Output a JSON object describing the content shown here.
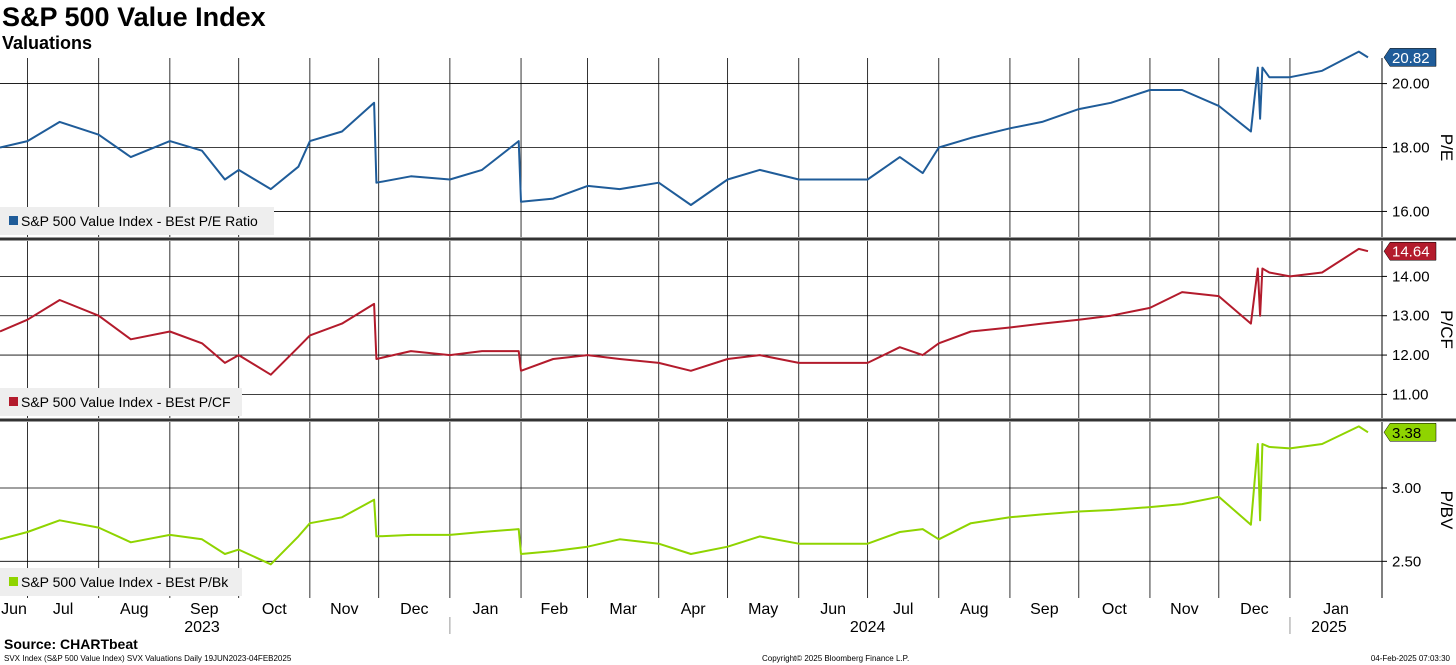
{
  "title": "S&P 500 Value Index",
  "subtitle": "Valuations",
  "footer": {
    "source": "Source: CHARTbeat",
    "left": "SVX Index (S&P 500 Value Index) SVX Valuations Daily 19JUN2023-04FEB2025",
    "middle": "Copyright© 2025 Bloomberg Finance L.P.",
    "right": "04-Feb-2025 07:03:30"
  },
  "colors": {
    "pe": "#1f5c99",
    "pcf": "#b31b2c",
    "pbv": "#8fd400",
    "grid": "#000000",
    "separator": "#333333",
    "legend_bg": "#eeeeee"
  },
  "chart_data": [
    {
      "type": "line",
      "ylabel": "P/E",
      "ylim": [
        15.2,
        20.8
      ],
      "yticks": [
        "16.00",
        "18.00",
        "20.00"
      ],
      "last_value_label": "20.82",
      "legend_position": "bottom-left",
      "series": [
        {
          "name": "S&P 500 Value Index - BEst P/E Ratio",
          "x": [
            "2023-06-19",
            "2023-07-01",
            "2023-07-15",
            "2023-08-01",
            "2023-08-15",
            "2023-09-01",
            "2023-09-15",
            "2023-09-25",
            "2023-10-01",
            "2023-10-15",
            "2023-10-27",
            "2023-11-01",
            "2023-11-15",
            "2023-11-29",
            "2023-11-30",
            "2023-12-15",
            "2024-01-01",
            "2024-01-15",
            "2024-01-31",
            "2024-02-01",
            "2024-02-15",
            "2024-03-01",
            "2024-03-15",
            "2024-04-01",
            "2024-04-15",
            "2024-05-01",
            "2024-05-15",
            "2024-06-01",
            "2024-06-15",
            "2024-07-01",
            "2024-07-15",
            "2024-07-25",
            "2024-08-01",
            "2024-08-15",
            "2024-09-01",
            "2024-09-15",
            "2024-10-01",
            "2024-10-15",
            "2024-11-01",
            "2024-11-15",
            "2024-12-01",
            "2024-12-15",
            "2024-12-18",
            "2024-12-19",
            "2024-12-20",
            "2024-12-23",
            "2025-01-01",
            "2025-01-15",
            "2025-01-31",
            "2025-02-04"
          ],
          "values": [
            18.0,
            18.2,
            18.8,
            18.4,
            17.7,
            18.2,
            17.9,
            17.0,
            17.3,
            16.7,
            17.4,
            18.2,
            18.5,
            19.4,
            16.9,
            17.1,
            17.0,
            17.3,
            18.2,
            16.3,
            16.4,
            16.8,
            16.7,
            16.9,
            16.2,
            17.0,
            17.3,
            17.0,
            17.0,
            17.0,
            17.7,
            17.2,
            18.0,
            18.3,
            18.6,
            18.8,
            19.2,
            19.4,
            19.8,
            19.8,
            19.3,
            18.5,
            20.5,
            18.9,
            20.5,
            20.2,
            20.2,
            20.4,
            21.0,
            20.82
          ]
        }
      ]
    },
    {
      "type": "line",
      "ylabel": "P/CF",
      "ylim": [
        10.4,
        14.9
      ],
      "yticks": [
        "11.00",
        "12.00",
        "13.00",
        "14.00"
      ],
      "last_value_label": "14.64",
      "legend_position": "bottom-left",
      "series": [
        {
          "name": "S&P 500 Value Index - BEst P/CF",
          "x": [
            "2023-06-19",
            "2023-07-01",
            "2023-07-15",
            "2023-08-01",
            "2023-08-15",
            "2023-09-01",
            "2023-09-15",
            "2023-09-25",
            "2023-10-01",
            "2023-10-15",
            "2023-10-27",
            "2023-11-01",
            "2023-11-15",
            "2023-11-29",
            "2023-11-30",
            "2023-12-15",
            "2024-01-01",
            "2024-01-15",
            "2024-01-31",
            "2024-02-01",
            "2024-02-15",
            "2024-03-01",
            "2024-03-15",
            "2024-04-01",
            "2024-04-15",
            "2024-05-01",
            "2024-05-15",
            "2024-06-01",
            "2024-06-15",
            "2024-07-01",
            "2024-07-15",
            "2024-07-25",
            "2024-08-01",
            "2024-08-15",
            "2024-09-01",
            "2024-09-15",
            "2024-10-01",
            "2024-10-15",
            "2024-11-01",
            "2024-11-15",
            "2024-12-01",
            "2024-12-15",
            "2024-12-18",
            "2024-12-19",
            "2024-12-20",
            "2024-12-23",
            "2025-01-01",
            "2025-01-15",
            "2025-01-31",
            "2025-02-04"
          ],
          "values": [
            12.6,
            12.9,
            13.4,
            13.0,
            12.4,
            12.6,
            12.3,
            11.8,
            12.0,
            11.5,
            12.2,
            12.5,
            12.8,
            13.3,
            11.9,
            12.1,
            12.0,
            12.1,
            12.1,
            11.6,
            11.9,
            12.0,
            11.9,
            11.8,
            11.6,
            11.9,
            12.0,
            11.8,
            11.8,
            11.8,
            12.2,
            12.0,
            12.3,
            12.6,
            12.7,
            12.8,
            12.9,
            13.0,
            13.2,
            13.6,
            13.5,
            12.8,
            14.2,
            13.0,
            14.2,
            14.1,
            14.0,
            14.1,
            14.7,
            14.64
          ]
        }
      ]
    },
    {
      "type": "line",
      "ylabel": "P/BV",
      "ylim": [
        2.25,
        3.45
      ],
      "yticks": [
        "2.50",
        "3.00"
      ],
      "last_value_label": "3.38",
      "legend_position": "bottom-left",
      "series": [
        {
          "name": "S&P 500 Value Index - BEst P/Bk",
          "x": [
            "2023-06-19",
            "2023-07-01",
            "2023-07-15",
            "2023-08-01",
            "2023-08-15",
            "2023-09-01",
            "2023-09-15",
            "2023-09-25",
            "2023-10-01",
            "2023-10-15",
            "2023-10-27",
            "2023-11-01",
            "2023-11-15",
            "2023-11-29",
            "2023-11-30",
            "2023-12-15",
            "2024-01-01",
            "2024-01-15",
            "2024-01-31",
            "2024-02-01",
            "2024-02-15",
            "2024-03-01",
            "2024-03-15",
            "2024-04-01",
            "2024-04-15",
            "2024-05-01",
            "2024-05-15",
            "2024-06-01",
            "2024-06-15",
            "2024-07-01",
            "2024-07-15",
            "2024-07-25",
            "2024-08-01",
            "2024-08-15",
            "2024-09-01",
            "2024-09-15",
            "2024-10-01",
            "2024-10-15",
            "2024-11-01",
            "2024-11-15",
            "2024-12-01",
            "2024-12-15",
            "2024-12-18",
            "2024-12-19",
            "2024-12-20",
            "2024-12-23",
            "2025-01-01",
            "2025-01-15",
            "2025-01-31",
            "2025-02-04"
          ],
          "values": [
            2.65,
            2.7,
            2.78,
            2.73,
            2.63,
            2.68,
            2.65,
            2.55,
            2.58,
            2.48,
            2.67,
            2.76,
            2.8,
            2.92,
            2.67,
            2.68,
            2.68,
            2.7,
            2.72,
            2.55,
            2.57,
            2.6,
            2.65,
            2.62,
            2.55,
            2.6,
            2.67,
            2.62,
            2.62,
            2.62,
            2.7,
            2.72,
            2.65,
            2.76,
            2.8,
            2.82,
            2.84,
            2.85,
            2.87,
            2.89,
            2.94,
            2.75,
            3.3,
            2.78,
            3.3,
            3.28,
            3.27,
            3.3,
            3.42,
            3.38
          ]
        }
      ]
    }
  ],
  "x_axis": {
    "type": "time",
    "range": [
      "2023-06-19",
      "2025-02-04"
    ],
    "months": [
      {
        "label": "Jun",
        "date": "2023-06-01"
      },
      {
        "label": "Jul",
        "date": "2023-07-01"
      },
      {
        "label": "Aug",
        "date": "2023-08-01"
      },
      {
        "label": "Sep",
        "date": "2023-09-01"
      },
      {
        "label": "Oct",
        "date": "2023-10-01"
      },
      {
        "label": "Nov",
        "date": "2023-11-01"
      },
      {
        "label": "Dec",
        "date": "2023-12-01"
      },
      {
        "label": "Jan",
        "date": "2024-01-01"
      },
      {
        "label": "Feb",
        "date": "2024-02-01"
      },
      {
        "label": "Mar",
        "date": "2024-03-01"
      },
      {
        "label": "Apr",
        "date": "2024-04-01"
      },
      {
        "label": "May",
        "date": "2024-05-01"
      },
      {
        "label": "Jun",
        "date": "2024-06-01"
      },
      {
        "label": "Jul",
        "date": "2024-07-01"
      },
      {
        "label": "Aug",
        "date": "2024-08-01"
      },
      {
        "label": "Sep",
        "date": "2024-09-01"
      },
      {
        "label": "Oct",
        "date": "2024-10-01"
      },
      {
        "label": "Nov",
        "date": "2024-11-01"
      },
      {
        "label": "Dec",
        "date": "2024-12-01"
      },
      {
        "label": "Jan",
        "date": "2025-01-01"
      }
    ],
    "years": [
      {
        "label": "2023",
        "date": "2023-09-15"
      },
      {
        "label": "2024",
        "date": "2024-07-01"
      },
      {
        "label": "2025",
        "date": "2025-01-18"
      }
    ],
    "year_boundaries": [
      "2024-01-01",
      "2025-01-01"
    ]
  }
}
